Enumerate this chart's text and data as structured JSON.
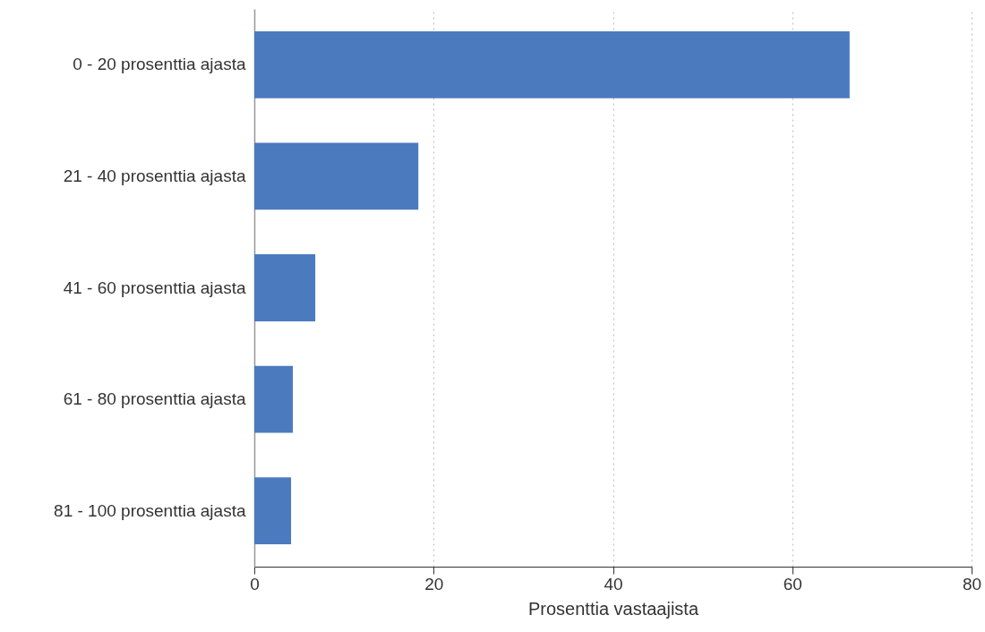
{
  "chart_data": {
    "type": "bar",
    "orientation": "horizontal",
    "xlabel": "Prosenttia vastaajista",
    "categories": [
      "0 - 20 prosenttia ajasta",
      "21 - 40 prosenttia ajasta",
      "41 - 60 prosenttia ajasta",
      "61 - 80 prosenttia ajasta",
      "81 - 100 prosenttia ajasta"
    ],
    "values": [
      66.4,
      18.3,
      6.8,
      4.3,
      4.1
    ],
    "color": "#4c7abf",
    "xlim": [
      0,
      80
    ],
    "xticks": [
      0,
      20,
      40,
      60,
      80
    ],
    "grid": "x"
  }
}
